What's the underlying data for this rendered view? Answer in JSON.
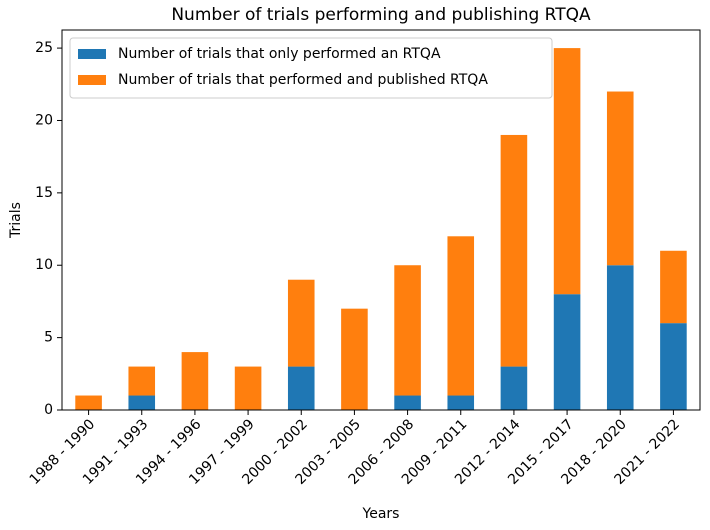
{
  "chart_data": {
    "type": "stacked_bar",
    "title": "Number of trials performing and publishing RTQA",
    "x_label": "Years",
    "y_label": "Trials",
    "categories": [
      "1988 - 1990",
      "1991 - 1993",
      "1994 - 1996",
      "1997 - 1999",
      "2000 - 2002",
      "2003 - 2005",
      "2006 - 2008",
      "2009 - 2011",
      "2012 - 2014",
      "2015 - 2017",
      "2018 - 2020",
      "2021 - 2022"
    ],
    "series": [
      {
        "name": "Number of trials that only performed an RTQA",
        "color": "#1f77b4",
        "values": [
          0,
          1,
          0,
          0,
          3,
          0,
          1,
          1,
          3,
          8,
          10,
          6
        ]
      },
      {
        "name": "Number of trials that performed and published RTQA",
        "color": "#ff7f0e",
        "values": [
          1,
          2,
          4,
          3,
          6,
          7,
          9,
          11,
          16,
          17,
          12,
          5
        ]
      }
    ],
    "ylim": [
      0,
      26.25
    ],
    "yticks": [
      0,
      5,
      10,
      15,
      20,
      25
    ],
    "legend": "upper left"
  }
}
